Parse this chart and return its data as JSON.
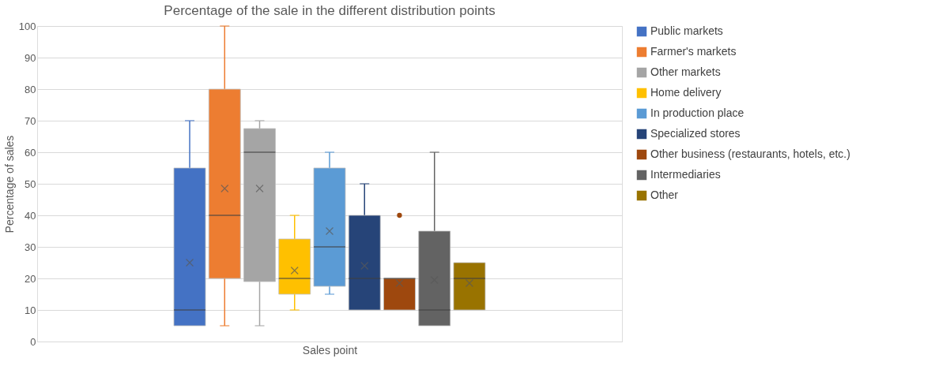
{
  "chart_data": {
    "type": "box",
    "title": "Percentage of the sale in the different distribution points",
    "xlabel": "Sales point",
    "ylabel": "Percentage of sales",
    "categories": [
      null
    ],
    "ylim": [
      0,
      100
    ],
    "yticks": [
      0,
      10,
      20,
      30,
      40,
      50,
      60,
      70,
      80,
      90,
      100
    ],
    "grid": "y",
    "legend": "right",
    "tick_labels": "y",
    "series": [
      {
        "name": "Public markets",
        "color": "#4472c4",
        "boxes": [
          {
            "low": 5,
            "q1": 5,
            "median": 10,
            "q3": 55,
            "high": 70,
            "mean": 25
          }
        ]
      },
      {
        "name": "Farmer's markets",
        "color": "#ed7d31",
        "boxes": [
          {
            "low": 5,
            "q1": 20,
            "median": 40,
            "q3": 80,
            "high": 100,
            "mean": 48.5
          }
        ]
      },
      {
        "name": "Other markets",
        "color": "#a5a5a5",
        "boxes": [
          {
            "low": 5,
            "q1": 19,
            "median": 60,
            "q3": 67.5,
            "high": 70,
            "mean": 48.5
          }
        ]
      },
      {
        "name": "Home delivery",
        "color": "#ffc000",
        "boxes": [
          {
            "low": 10,
            "q1": 15,
            "median": 20,
            "q3": 32.5,
            "high": 40,
            "mean": 22.5
          }
        ]
      },
      {
        "name": "In production place",
        "color": "#5b9bd5",
        "boxes": [
          {
            "low": 15,
            "q1": 17.5,
            "median": 30,
            "q3": 55,
            "high": 60,
            "mean": 35
          }
        ]
      },
      {
        "name": "Specialized stores",
        "color": "#264478",
        "boxes": [
          {
            "low": 10,
            "q1": 10,
            "median": 20,
            "q3": 40,
            "high": 50,
            "mean": 24
          }
        ]
      },
      {
        "name": "Other business (restaurants, hotels, etc.)",
        "color": "#9e480e",
        "boxes": [
          {
            "low": 10,
            "q1": 10,
            "median": 20,
            "q3": 20,
            "high": 20,
            "mean": 18.5,
            "outliers": [
              40
            ]
          }
        ]
      },
      {
        "name": "Intermediaries",
        "color": "#636363",
        "boxes": [
          {
            "low": 5,
            "q1": 5,
            "median": 10,
            "q3": 35,
            "high": 60,
            "mean": 19.5
          }
        ]
      },
      {
        "name": "Other",
        "color": "#997300",
        "boxes": [
          {
            "low": 10,
            "q1": 10,
            "median": 20,
            "q3": 25,
            "high": 25,
            "mean": 18.5
          }
        ]
      }
    ]
  }
}
